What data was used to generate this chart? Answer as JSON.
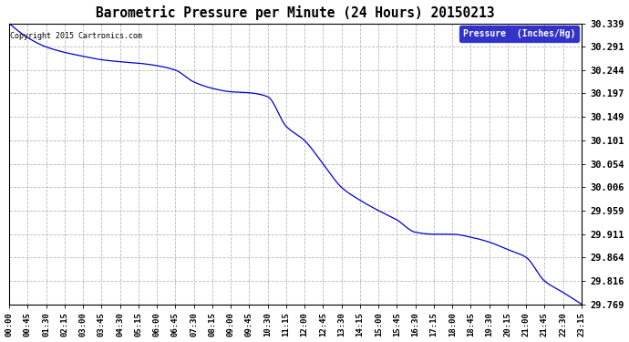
{
  "title": "Barometric Pressure per Minute (24 Hours) 20150213",
  "copyright": "Copyright 2015 Cartronics.com",
  "legend_label": "Pressure  (Inches/Hg)",
  "line_color": "#0000cc",
  "background_color": "#ffffff",
  "grid_color": "#b0b0b0",
  "yticks": [
    29.769,
    29.816,
    29.864,
    29.911,
    29.959,
    30.006,
    30.054,
    30.101,
    30.149,
    30.197,
    30.244,
    30.291,
    30.339
  ],
  "ylim": [
    29.769,
    30.339
  ],
  "xtick_labels": [
    "00:00",
    "00:45",
    "01:30",
    "02:15",
    "03:00",
    "03:45",
    "04:30",
    "05:15",
    "06:00",
    "06:45",
    "07:30",
    "08:15",
    "09:00",
    "09:45",
    "10:30",
    "11:15",
    "12:00",
    "12:45",
    "13:30",
    "14:15",
    "15:00",
    "15:45",
    "16:30",
    "17:15",
    "18:00",
    "18:45",
    "19:30",
    "20:15",
    "21:00",
    "21:45",
    "22:30",
    "23:15"
  ],
  "key_times_min": [
    0,
    45,
    90,
    135,
    180,
    225,
    270,
    315,
    360,
    405,
    450,
    495,
    540,
    585,
    630,
    675,
    720,
    765,
    810,
    855,
    900,
    945,
    990,
    1035,
    1080,
    1125,
    1170,
    1215,
    1260,
    1305,
    1350,
    1395
  ],
  "key_values": [
    30.339,
    30.31,
    30.291,
    30.28,
    30.272,
    30.265,
    30.261,
    30.258,
    30.253,
    30.244,
    30.22,
    30.207,
    30.2,
    30.198,
    30.19,
    30.13,
    30.101,
    30.054,
    30.006,
    29.98,
    29.959,
    29.94,
    29.915,
    29.911,
    29.911,
    29.905,
    29.895,
    29.88,
    29.864,
    29.816,
    29.793,
    29.769
  ]
}
